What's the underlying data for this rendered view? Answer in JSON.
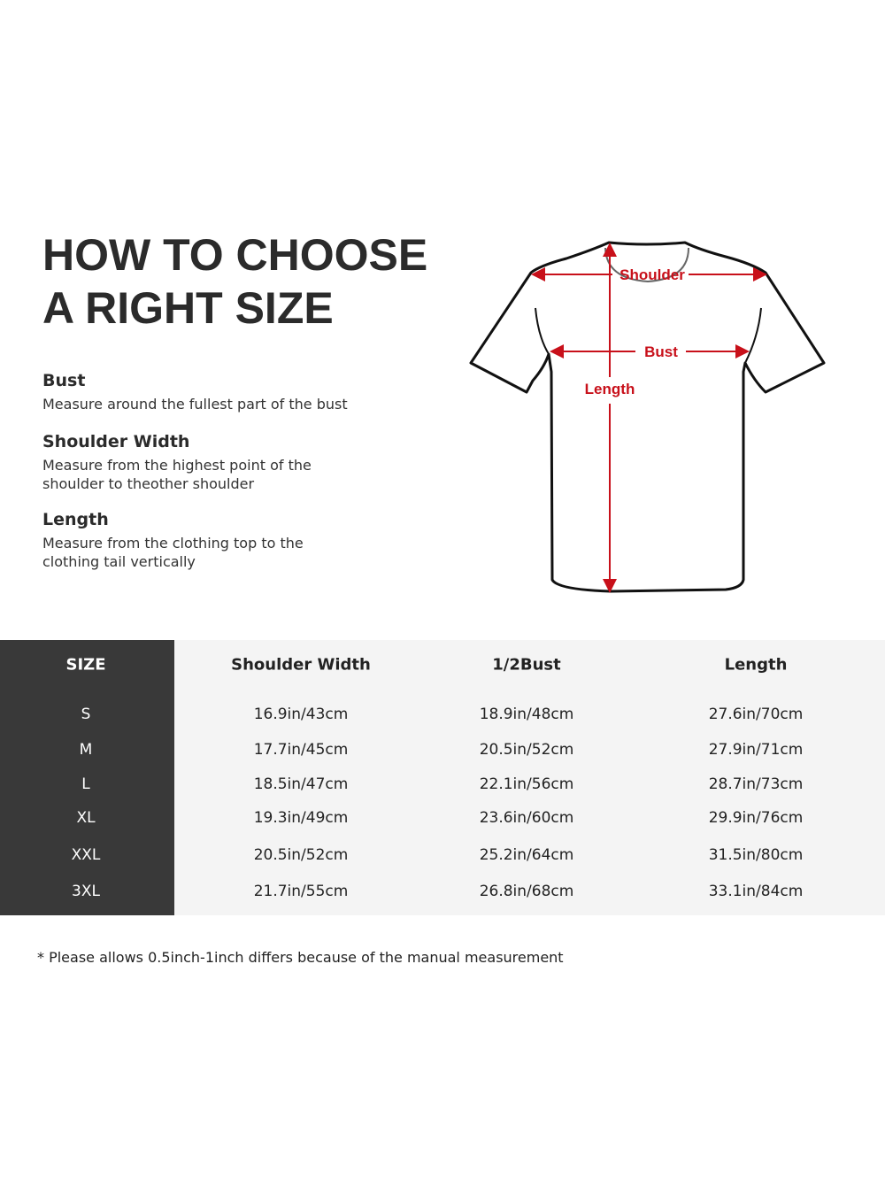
{
  "title": {
    "line1": "HOW TO CHOOSE",
    "line2": "A RIGHT SIZE"
  },
  "measures": [
    {
      "name": "Bust",
      "text": "Measure around the fullest part of the bust"
    },
    {
      "name": "Shoulder Width",
      "text": "Measure from the highest point of the shoulder to theother shoulder"
    },
    {
      "name": "Length",
      "text": "Measure from the clothing top to the clothing tail vertically"
    }
  ],
  "diagram": {
    "shoulder": "Shoulder",
    "bust": "Bust",
    "length": "Length",
    "arrow_color": "#c8101a"
  },
  "table": {
    "headers": [
      "SIZE",
      "Shoulder Width",
      "1/2Bust",
      "Length"
    ],
    "rows": [
      [
        "S",
        "16.9in/43cm",
        "18.9in/48cm",
        "27.6in/70cm"
      ],
      [
        "M",
        "17.7in/45cm",
        "20.5in/52cm",
        "27.9in/71cm"
      ],
      [
        "L",
        "18.5in/47cm",
        "22.1in/56cm",
        "28.7in/73cm"
      ],
      [
        "XL",
        "19.3in/49cm",
        "23.6in/60cm",
        "29.9in/76cm"
      ],
      [
        "XXL",
        "20.5in/52cm",
        "25.2in/64cm",
        "31.5in/80cm"
      ],
      [
        "3XL",
        "21.7in/55cm",
        "26.8in/68cm",
        "33.1in/84cm"
      ]
    ]
  },
  "note": "* Please allows 0.5inch-1inch differs because of the  manual measurement"
}
